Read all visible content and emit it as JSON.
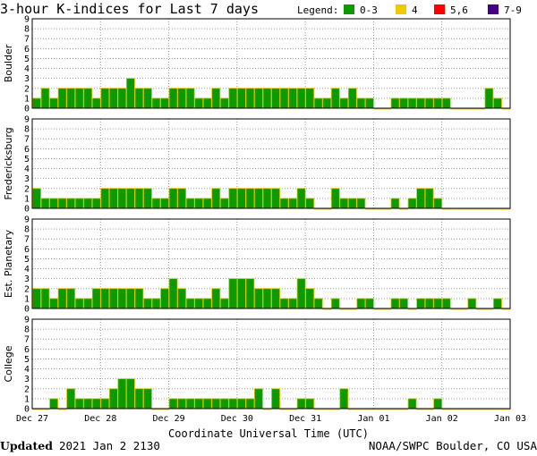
{
  "header": {
    "title": "3-hour K-indices for Last 7 days",
    "legend_label": "Legend:",
    "legend": [
      {
        "label": "0-3",
        "color": "#0b9a00"
      },
      {
        "label": "4",
        "color": "#f0c800"
      },
      {
        "label": "5,6",
        "color": "#ff0000"
      },
      {
        "label": "7-9",
        "color": "#440088"
      }
    ]
  },
  "footer": {
    "updated_label": "Updated",
    "updated_value": "2021 Jan  2 2130",
    "credit": "NOAA/SWPC Boulder, CO USA"
  },
  "chart_data": {
    "type": "bar",
    "xlabel": "Coordinate Universal Time (UTC)",
    "x_ticks": [
      "Dec 27",
      "Dec 28",
      "Dec 29",
      "Dec 30",
      "Dec 31",
      "Jan 01",
      "Jan 02",
      "Jan 03"
    ],
    "yticks": [
      "0",
      "1",
      "2",
      "3",
      "4",
      "5",
      "6",
      "7",
      "8",
      "9"
    ],
    "ylim": [
      0,
      9
    ],
    "grid": true,
    "bar_color": "#0b9a00",
    "bar_edge_color": "#d8c000",
    "panels": [
      {
        "name": "Boulder",
        "values": [
          1,
          2,
          1,
          2,
          2,
          2,
          2,
          1,
          2,
          2,
          2,
          3,
          2,
          2,
          1,
          1,
          2,
          2,
          2,
          1,
          1,
          2,
          1,
          2,
          2,
          2,
          2,
          2,
          2,
          2,
          2,
          2,
          2,
          1,
          1,
          2,
          1,
          2,
          1,
          1,
          0,
          0,
          1,
          1,
          1,
          1,
          1,
          1,
          1,
          0,
          0,
          0,
          0,
          2,
          1,
          0
        ]
      },
      {
        "name": "Fredericksburg",
        "values": [
          2,
          1,
          1,
          1,
          1,
          1,
          1,
          1,
          2,
          2,
          2,
          2,
          2,
          2,
          1,
          1,
          2,
          2,
          1,
          1,
          1,
          2,
          1,
          2,
          2,
          2,
          2,
          2,
          2,
          1,
          1,
          2,
          1,
          0,
          0,
          2,
          1,
          1,
          1,
          0,
          0,
          0,
          1,
          0,
          1,
          2,
          2,
          1,
          0,
          0,
          0,
          0,
          0,
          0,
          0,
          0
        ]
      },
      {
        "name": "Est. Planetary",
        "values": [
          2,
          2,
          1,
          2,
          2,
          1,
          1,
          2,
          2,
          2,
          2,
          2,
          2,
          1,
          1,
          2,
          3,
          2,
          1,
          1,
          1,
          2,
          1,
          3,
          3,
          3,
          2,
          2,
          2,
          1,
          1,
          3,
          2,
          1,
          0,
          1,
          0,
          0,
          1,
          1,
          0,
          0,
          1,
          1,
          0,
          1,
          1,
          1,
          1,
          0,
          0,
          1,
          0,
          0,
          1,
          0
        ]
      },
      {
        "name": "College",
        "values": [
          0,
          0,
          1,
          0,
          2,
          1,
          1,
          1,
          1,
          2,
          3,
          3,
          2,
          2,
          0,
          0,
          1,
          1,
          1,
          1,
          1,
          1,
          1,
          1,
          1,
          1,
          2,
          0,
          2,
          0,
          0,
          1,
          1,
          0,
          0,
          0,
          2,
          0,
          0,
          0,
          0,
          0,
          0,
          0,
          1,
          0,
          0,
          1,
          0,
          0,
          0,
          0,
          0,
          0,
          0,
          0
        ]
      }
    ]
  }
}
